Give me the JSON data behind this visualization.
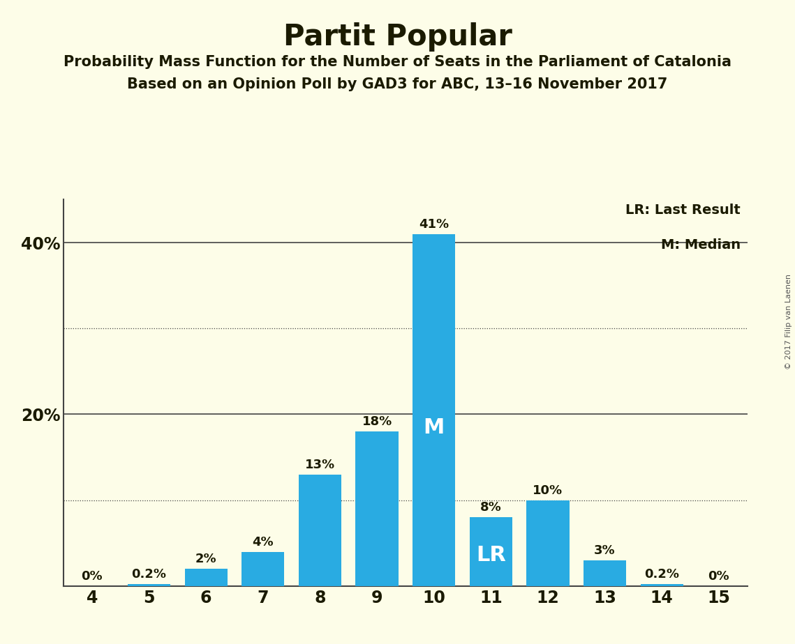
{
  "title": "Partit Popular",
  "subtitle1": "Probability Mass Function for the Number of Seats in the Parliament of Catalonia",
  "subtitle2": "Based on an Opinion Poll by GAD3 for ABC, 13–16 November 2017",
  "copyright": "© 2017 Filip van Laenen",
  "categories": [
    4,
    5,
    6,
    7,
    8,
    9,
    10,
    11,
    12,
    13,
    14,
    15
  ],
  "values": [
    0,
    0.2,
    2,
    4,
    13,
    18,
    41,
    8,
    10,
    3,
    0.2,
    0
  ],
  "labels": [
    "0%",
    "0.2%",
    "2%",
    "4%",
    "13%",
    "18%",
    "41%",
    "8%",
    "10%",
    "3%",
    "0.2%",
    "0%"
  ],
  "bar_color": "#29ABE2",
  "background_color": "#FDFDE8",
  "title_color": "#1a1a00",
  "median_seat": 10,
  "last_result_seat": 11,
  "median_label": "M",
  "last_result_label": "LR",
  "legend_lr": "LR: Last Result",
  "legend_m": "M: Median",
  "ylim": [
    0,
    45
  ],
  "ytick_positions": [
    20,
    40
  ],
  "ytick_labels": [
    "20%",
    "40%"
  ],
  "solid_line_y": [
    20,
    40
  ],
  "dotted_line_y": [
    10,
    30
  ],
  "bar_width": 0.75
}
